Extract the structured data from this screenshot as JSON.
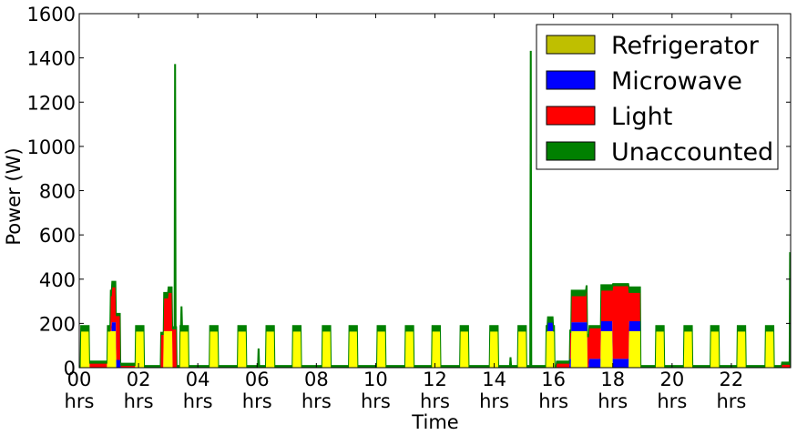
{
  "chart_data": {
    "type": "area",
    "stacked": true,
    "xlabel": "Time",
    "ylabel": "Power (W)",
    "ylim": [
      0,
      1600
    ],
    "xlim": [
      0,
      24
    ],
    "y_ticks": [
      0,
      200,
      400,
      600,
      800,
      1000,
      1200,
      1400,
      1600
    ],
    "x_ticks": [
      {
        "hour": 0,
        "label": "00",
        "unit": "hrs"
      },
      {
        "hour": 2,
        "label": "02",
        "unit": "hrs"
      },
      {
        "hour": 4,
        "label": "04",
        "unit": "hrs"
      },
      {
        "hour": 6,
        "label": "06",
        "unit": "hrs"
      },
      {
        "hour": 8,
        "label": "08",
        "unit": "hrs"
      },
      {
        "hour": 10,
        "label": "10",
        "unit": "hrs"
      },
      {
        "hour": 12,
        "label": "12",
        "unit": "hrs"
      },
      {
        "hour": 14,
        "label": "14",
        "unit": "hrs"
      },
      {
        "hour": 16,
        "label": "16",
        "unit": "hrs"
      },
      {
        "hour": 18,
        "label": "18",
        "unit": "hrs"
      },
      {
        "hour": 20,
        "label": "20",
        "unit": "hrs"
      },
      {
        "hour": 22,
        "label": "22",
        "unit": "hrs"
      }
    ],
    "legend_position": "top-right",
    "legend": [
      {
        "name": "Refrigerator",
        "color": "#bfbf00"
      },
      {
        "name": "Microwave",
        "color": "#0000ff"
      },
      {
        "name": "Light",
        "color": "#ff0000"
      },
      {
        "name": "Unaccounted",
        "color": "#008000"
      }
    ],
    "fill_colors": {
      "refrigerator": "#ffff00",
      "microwave": "#0000ff",
      "light": "#ff0000",
      "unaccounted": "#008000"
    },
    "refrigerator": {
      "on_power": 165,
      "cycles": [
        [
          0.05,
          0.35
        ],
        [
          0.95,
          1.25
        ],
        [
          1.9,
          2.2
        ],
        [
          2.85,
          3.15
        ],
        [
          3.4,
          3.7
        ],
        [
          4.4,
          4.7
        ],
        [
          5.35,
          5.65
        ],
        [
          6.3,
          6.6
        ],
        [
          7.2,
          7.5
        ],
        [
          8.2,
          8.5
        ],
        [
          9.1,
          9.4
        ],
        [
          10.05,
          10.35
        ],
        [
          11.0,
          11.3
        ],
        [
          11.9,
          12.2
        ],
        [
          12.85,
          13.15
        ],
        [
          13.85,
          14.15
        ],
        [
          14.8,
          15.1
        ],
        [
          15.75,
          16.05
        ],
        [
          16.6,
          17.15
        ],
        [
          17.6,
          18.0
        ],
        [
          18.55,
          18.95
        ],
        [
          19.45,
          19.75
        ],
        [
          20.4,
          20.7
        ],
        [
          21.3,
          21.6
        ],
        [
          22.2,
          22.5
        ],
        [
          23.15,
          23.45
        ]
      ]
    },
    "light": {
      "segments": [
        [
          0.35,
          0.95,
          20
        ],
        [
          1.05,
          1.25,
          160
        ],
        [
          1.25,
          1.4,
          200
        ],
        [
          1.4,
          1.9,
          10
        ],
        [
          2.75,
          3.0,
          150
        ],
        [
          3.0,
          3.3,
          175
        ],
        [
          16.1,
          16.55,
          20
        ],
        [
          16.55,
          17.1,
          120
        ],
        [
          17.1,
          17.6,
          140
        ],
        [
          17.6,
          18.0,
          140
        ],
        [
          18.0,
          18.55,
          330
        ],
        [
          18.55,
          18.95,
          130
        ],
        [
          23.7,
          24.0,
          15
        ]
      ]
    },
    "microwave": {
      "segments": [
        [
          1.1,
          1.25,
          40
        ],
        [
          1.25,
          1.4,
          35
        ],
        [
          15.8,
          16.0,
          40
        ],
        [
          16.55,
          17.15,
          40
        ],
        [
          17.2,
          17.6,
          40
        ],
        [
          17.6,
          18.0,
          45
        ],
        [
          18.0,
          18.55,
          40
        ],
        [
          18.55,
          18.95,
          45
        ]
      ]
    },
    "unaccounted": {
      "baseline": 10,
      "spikes": [
        {
          "hour": 3.23,
          "power": 1370
        },
        {
          "hour": 3.45,
          "power": 275
        },
        {
          "hour": 6.05,
          "power": 85
        },
        {
          "hour": 14.1,
          "power": 30
        },
        {
          "hour": 14.55,
          "power": 45
        },
        {
          "hour": 15.23,
          "power": 1430
        },
        {
          "hour": 23.98,
          "power": 520
        }
      ]
    }
  }
}
